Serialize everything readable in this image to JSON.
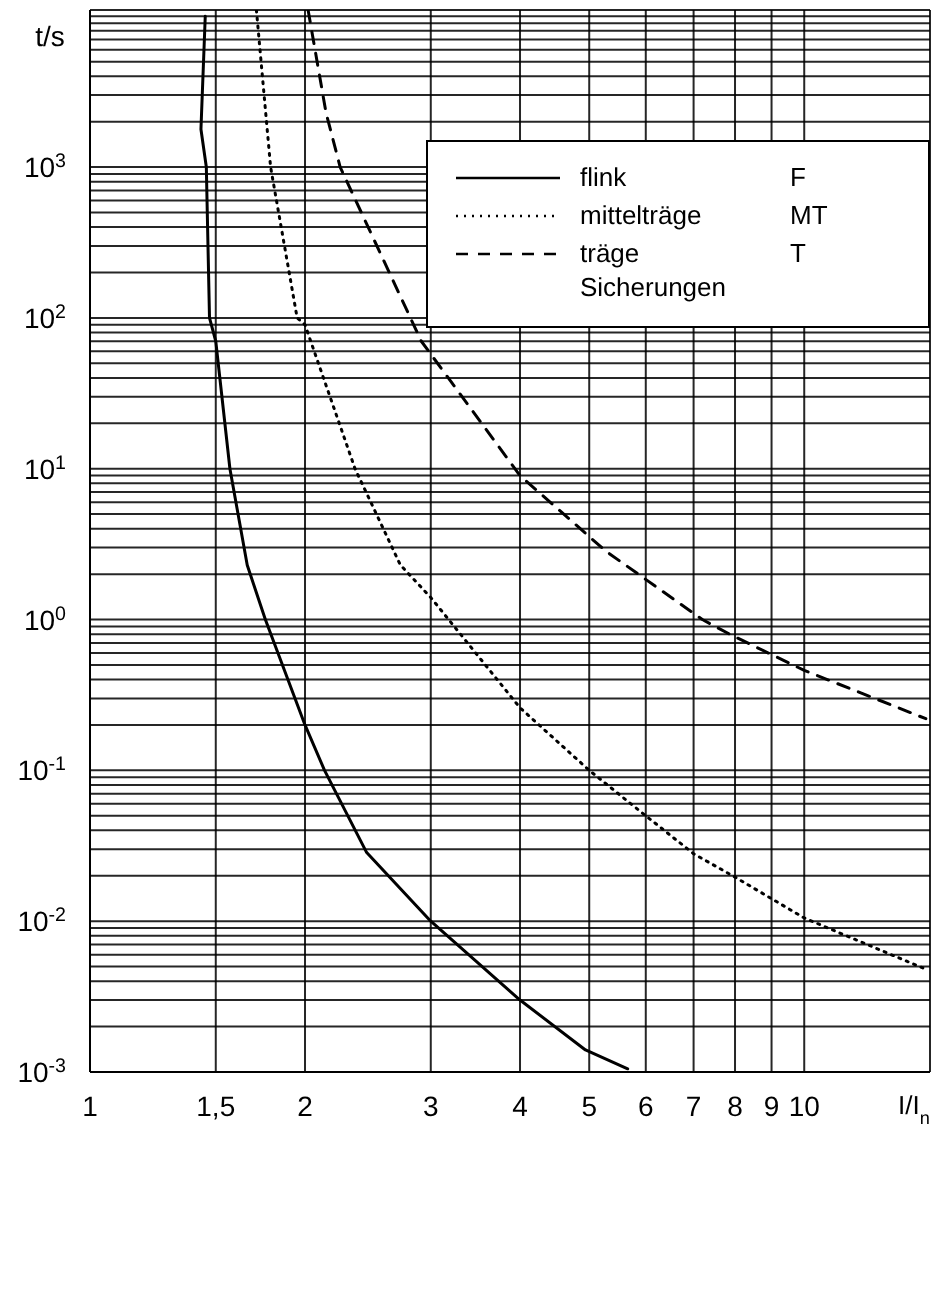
{
  "chart_data": {
    "type": "line",
    "xlabel": "I/I$_{n}$",
    "ylabel": "t/s",
    "legend_title": "Sicherungen",
    "log": "xy",
    "grid": true,
    "legend": "top right",
    "xlim": [
      1,
      15
    ],
    "ylim": [
      0.001,
      11000
    ],
    "xticks": [
      1,
      {
        "value": 1.5,
        "label": "1,5"
      },
      2,
      3,
      4,
      5,
      6,
      7,
      8,
      9,
      10
    ],
    "yticks": [
      {
        "value": 0.001,
        "label": "10$^{-3}$"
      },
      {
        "value": 0.002,
        "label": null
      },
      {
        "value": 0.003,
        "label": null
      },
      {
        "value": 0.004,
        "label": null
      },
      {
        "value": 0.005,
        "label": null
      },
      {
        "value": 0.006,
        "label": null
      },
      {
        "value": 0.007,
        "label": null
      },
      {
        "value": 0.008,
        "label": null
      },
      {
        "value": 0.009,
        "label": null
      },
      {
        "value": 0.01,
        "label": "10$^{-2}$"
      },
      {
        "value": 0.02,
        "label": null
      },
      {
        "value": 0.03,
        "label": null
      },
      {
        "value": 0.04,
        "label": null
      },
      {
        "value": 0.05,
        "label": null
      },
      {
        "value": 0.06,
        "label": null
      },
      {
        "value": 0.07,
        "label": null
      },
      {
        "value": 0.08,
        "label": null
      },
      {
        "value": 0.09,
        "label": null
      },
      {
        "value": 0.1,
        "label": "10$^{-1}$"
      },
      {
        "value": 0.2,
        "label": null
      },
      {
        "value": 0.3,
        "label": null
      },
      {
        "value": 0.4,
        "label": null
      },
      {
        "value": 0.5,
        "label": null
      },
      {
        "value": 0.6,
        "label": null
      },
      {
        "value": 0.7,
        "label": null
      },
      {
        "value": 0.8,
        "label": null
      },
      {
        "value": 0.9,
        "label": null
      },
      {
        "value": 1,
        "label": "10$^{0}$"
      },
      {
        "value": 2,
        "label": null
      },
      {
        "value": 3,
        "label": null
      },
      {
        "value": 4,
        "label": null
      },
      {
        "value": 5,
        "label": null
      },
      {
        "value": 6,
        "label": null
      },
      {
        "value": 7,
        "label": null
      },
      {
        "value": 8,
        "label": null
      },
      {
        "value": 9,
        "label": null
      },
      {
        "value": 10,
        "label": "10$^{1}$"
      },
      {
        "value": 20,
        "label": null
      },
      {
        "value": 30,
        "label": null
      },
      {
        "value": 40,
        "label": null
      },
      {
        "value": 50,
        "label": null
      },
      {
        "value": 60,
        "label": null
      },
      {
        "value": 70,
        "label": null
      },
      {
        "value": 80,
        "label": null
      },
      {
        "value": 90,
        "label": null
      },
      {
        "value": 100,
        "label": "10$^{2}$"
      },
      {
        "value": 200,
        "label": null
      },
      {
        "value": 300,
        "label": null
      },
      {
        "value": 400,
        "label": null
      },
      {
        "value": 500,
        "label": null
      },
      {
        "value": 600,
        "label": null
      },
      {
        "value": 700,
        "label": null
      },
      {
        "value": 800,
        "label": null
      },
      {
        "value": 900,
        "label": null
      },
      {
        "value": 1000,
        "label": "10$^{3}$"
      },
      {
        "value": 2000,
        "label": null
      },
      {
        "value": 3000,
        "label": null
      },
      {
        "value": 4000,
        "label": null
      },
      {
        "value": 5000,
        "label": null
      },
      {
        "value": 6000,
        "label": null
      },
      {
        "value": 7000,
        "label": null
      },
      {
        "value": 8000,
        "label": null
      },
      {
        "value": 9000,
        "label": null
      },
      {
        "value": 10000,
        "label": null
      }
    ],
    "annotations": [
      "F",
      "MT",
      "T"
    ],
    "series": [
      {
        "name": "flink",
        "color": "#000000",
        "line_style": "solid",
        "x": [
          1.45,
          1.43,
          1.455,
          1.47,
          1.5,
          1.57,
          1.66,
          1.76,
          2,
          2.13,
          2.44,
          3,
          4,
          4.94,
          5.66
        ],
        "values": [
          10000,
          1780,
          1000,
          100,
          70,
          10,
          2.3,
          1,
          0.2,
          0.1,
          0.0285,
          0.01,
          0.003,
          0.0014,
          0.00105
        ]
      },
      {
        "name": "mittelträge",
        "color": "#000000",
        "line_style": "dotted",
        "x": [
          1.71,
          1.79,
          1.95,
          2,
          2.35,
          2.72,
          3,
          4,
          5,
          6,
          7,
          8,
          10,
          14.8
        ],
        "values": [
          11000,
          1000,
          100,
          90,
          10,
          2.3,
          1.4,
          0.26,
          0.1,
          0.05,
          0.028,
          0.0196,
          0.0105,
          0.0048
        ]
      },
      {
        "name": "träge",
        "color": "#000000",
        "line_style": "dashed",
        "x": [
          2.02,
          2.14,
          2.24,
          2.91,
          4,
          5.27,
          7.2,
          7.9,
          10,
          14.8
        ],
        "values": [
          11000,
          2300,
          1000,
          70,
          9,
          2.85,
          1,
          0.79,
          0.46,
          0.22
        ]
      }
    ]
  }
}
